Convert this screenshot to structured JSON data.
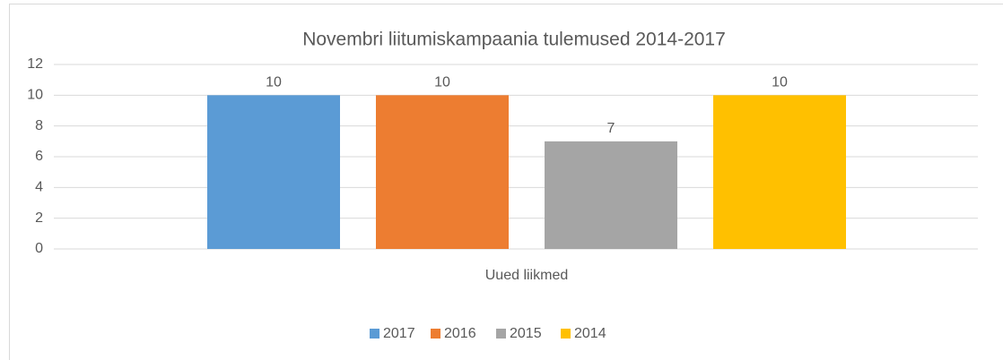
{
  "chart_data": {
    "type": "bar",
    "title": "Novembri liitumiskampaania tulemused 2014-2017",
    "categories": [
      "Uued liikmed"
    ],
    "series": [
      {
        "name": "2017",
        "color": "#5b9bd5",
        "values": [
          10
        ]
      },
      {
        "name": "2016",
        "color": "#ed7d31",
        "values": [
          10
        ]
      },
      {
        "name": "2015",
        "color": "#a5a5a5",
        "values": [
          7
        ]
      },
      {
        "name": "2014",
        "color": "#ffc000",
        "values": [
          10
        ]
      }
    ],
    "ylim": [
      0,
      12
    ],
    "yticks": [
      0,
      2,
      4,
      6,
      8,
      10,
      12
    ],
    "grid": true,
    "legend": "bottom"
  }
}
